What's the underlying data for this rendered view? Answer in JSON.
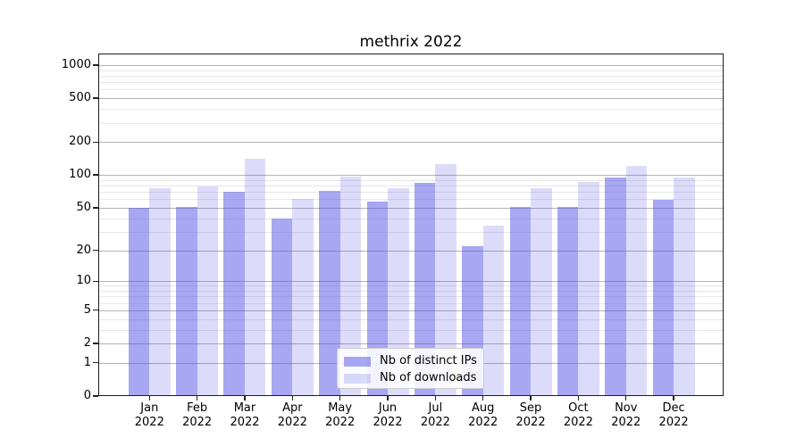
{
  "chart_data": {
    "type": "bar",
    "title": "methrix 2022",
    "categories": [
      "Jan 2022",
      "Feb 2022",
      "Mar 2022",
      "Apr 2022",
      "May 2022",
      "Jun 2022",
      "Jul 2022",
      "Aug 2022",
      "Sep 2022",
      "Oct 2022",
      "Nov 2022",
      "Dec 2022"
    ],
    "series": [
      {
        "name": "Nb of distinct IPs",
        "color": "#a7a7f2",
        "fill": "rgba(80,80,230,0.5)",
        "values": [
          50,
          51,
          70,
          40,
          71,
          57,
          84,
          22,
          51,
          51,
          95,
          59
        ]
      },
      {
        "name": "Nb of downloads",
        "color": "#dcdcfa",
        "fill": "rgba(80,80,230,0.2)",
        "values": [
          75,
          78,
          140,
          60,
          97,
          75,
          125,
          34,
          75,
          86,
          122,
          95
        ]
      }
    ],
    "xlabel": "",
    "ylabel": "",
    "yscale": "log1p",
    "ylim": [
      0,
      1270
    ],
    "y_axis": {
      "major_ticks": [
        0,
        1,
        2,
        5,
        10,
        20,
        50,
        100,
        200,
        500,
        1000
      ],
      "minor_ticks": [
        3,
        4,
        6,
        7,
        8,
        9,
        30,
        40,
        60,
        70,
        80,
        90,
        300,
        400,
        600,
        700,
        800,
        900
      ]
    },
    "grid": "both",
    "legend": {
      "position": "lower center",
      "labels": [
        "Nb of distinct IPs",
        "Nb of downloads"
      ]
    },
    "colors": {
      "grid_major": "#b3b3b3",
      "grid_minor": "#e7e7e7",
      "spine": "#1c1c1c",
      "text": "#000000"
    }
  }
}
